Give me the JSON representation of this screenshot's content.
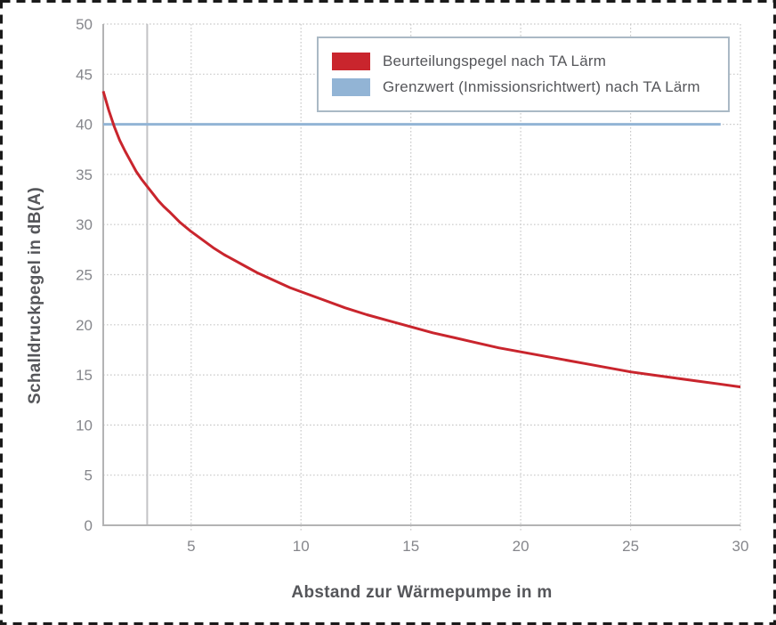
{
  "frame": {
    "background": "#ffffff",
    "border_color": "#1a1a1a",
    "border_style": "dashed"
  },
  "chart_data": {
    "type": "line",
    "title": "",
    "xlabel": "Abstand zur Wärmepumpe in m",
    "ylabel": "Schalldruckpegel in dB(A)",
    "xlim": [
      1,
      30
    ],
    "ylim": [
      0,
      50
    ],
    "x_ticks": [
      5,
      10,
      15,
      20,
      25,
      30
    ],
    "y_ticks": [
      0,
      5,
      10,
      15,
      20,
      25,
      30,
      35,
      40,
      45,
      50
    ],
    "grid": "dotted",
    "legend_position": "top-right",
    "marker_line_x": 3,
    "marker_line_color": "#c3c3c6",
    "limit_value": 40,
    "series": [
      {
        "name": "Beurteilungspegel nach TA Lärm",
        "color": "#c9252d",
        "width": 3,
        "x": [
          1,
          1.25,
          1.5,
          1.75,
          2,
          2.25,
          2.5,
          2.75,
          3,
          3.25,
          3.5,
          3.75,
          4,
          4.5,
          5,
          5.5,
          6,
          6.5,
          7,
          7.5,
          8,
          8.5,
          9,
          9.5,
          10,
          11,
          12,
          13,
          14,
          15,
          16,
          17,
          18,
          19,
          20,
          21,
          22,
          23,
          24,
          25,
          26,
          27,
          28,
          29,
          30
        ],
        "y": [
          43.3,
          41.4,
          39.8,
          38.4,
          37.3,
          36.3,
          35.3,
          34.5,
          33.8,
          33.1,
          32.4,
          31.8,
          31.3,
          30.2,
          29.3,
          28.5,
          27.7,
          27.0,
          26.4,
          25.8,
          25.2,
          24.7,
          24.2,
          23.7,
          23.3,
          22.5,
          21.7,
          21.0,
          20.4,
          19.8,
          19.2,
          18.7,
          18.2,
          17.7,
          17.3,
          16.9,
          16.5,
          16.1,
          15.7,
          15.3,
          15.0,
          14.7,
          14.4,
          14.1,
          13.8
        ]
      },
      {
        "name": "Grenzwert (Inmissionsrichtwert) nach TA Lärm",
        "color": "#92b4d5",
        "width": 3,
        "x": [
          1,
          29.1
        ],
        "y": [
          40,
          40
        ]
      }
    ]
  },
  "legend": {
    "items": [
      {
        "label": "Beurteilungspegel nach TA Lärm",
        "color": "#c9252d"
      },
      {
        "label": "Grenzwert (Inmissionsrichtwert) nach TA Lärm",
        "color": "#92b4d5"
      }
    ]
  }
}
